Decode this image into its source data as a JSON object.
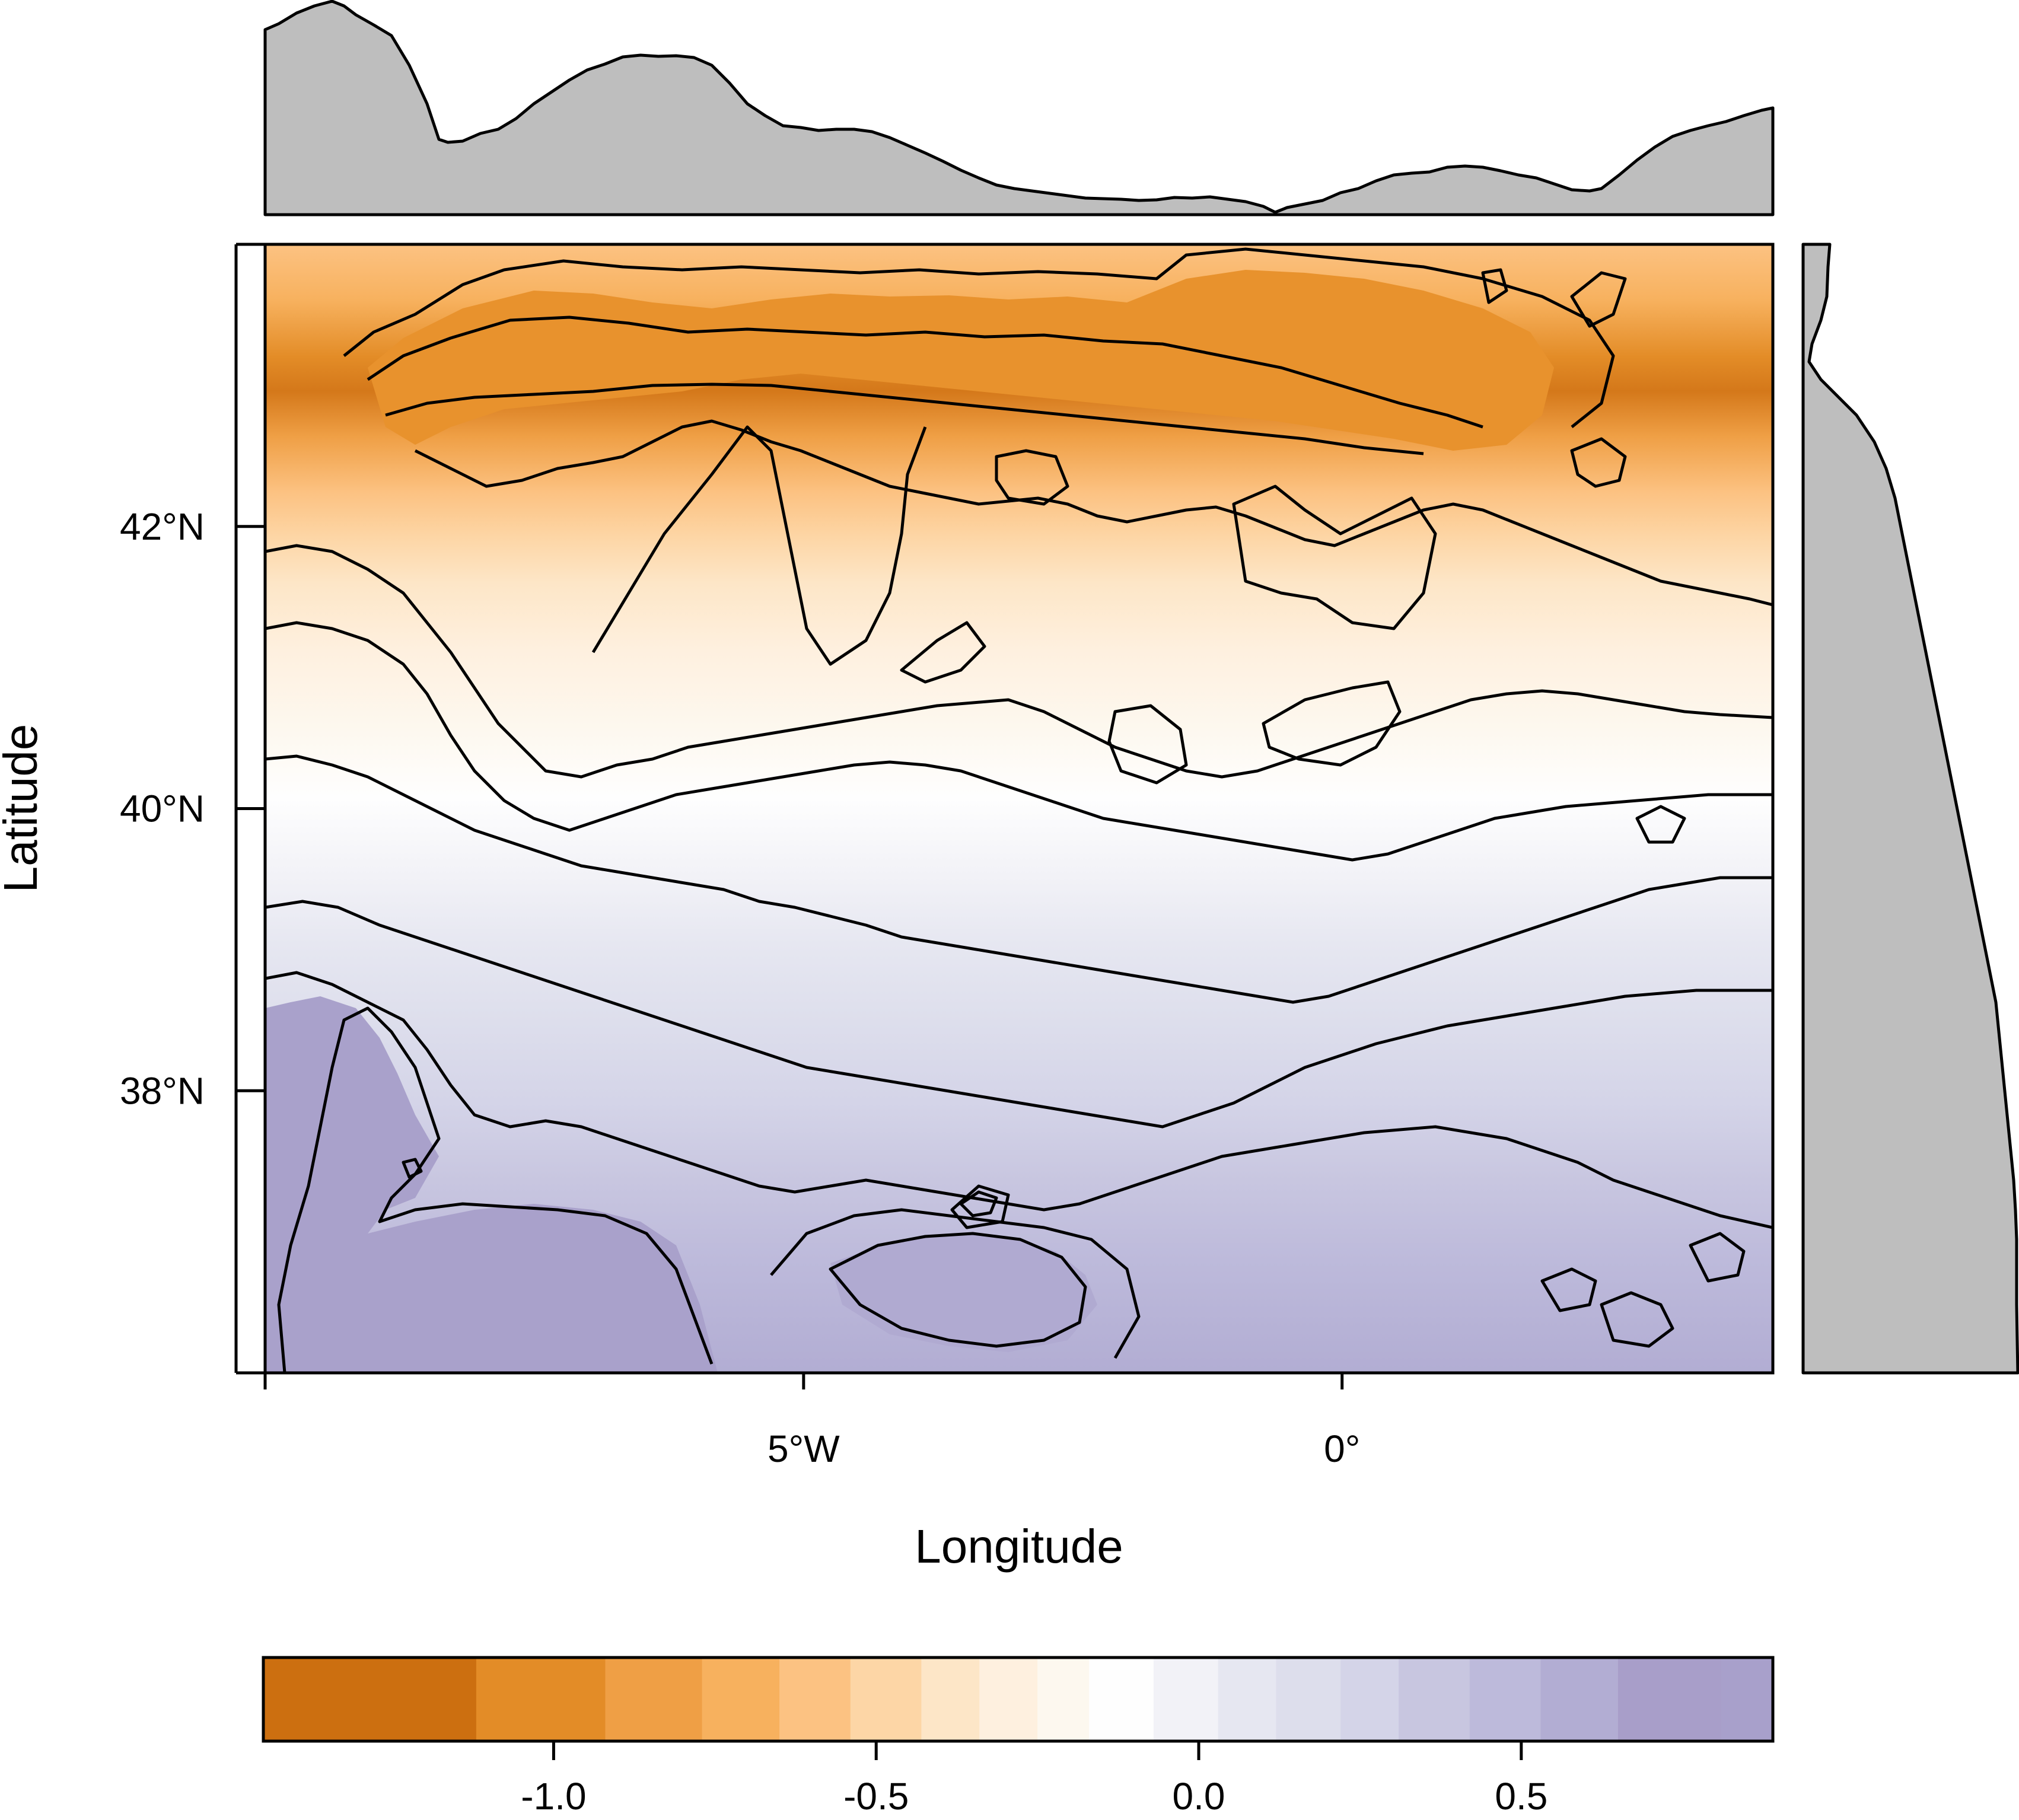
{
  "chart_data": {
    "type": "heatmap",
    "subtype": "filled-contour-map-with-marginal-profiles",
    "xlabel": "Longitude",
    "ylabel": "Latitude",
    "x_ticks": [
      {
        "value": -5,
        "label": "5°W"
      },
      {
        "value": 0,
        "label": "0°"
      }
    ],
    "y_ticks": [
      {
        "value": 38,
        "label": "38°N"
      },
      {
        "value": 40,
        "label": "40°N"
      },
      {
        "value": 42,
        "label": "42°N"
      }
    ],
    "xlim": [
      -10,
      4
    ],
    "ylim": [
      36,
      44
    ],
    "colorbar": {
      "breaks": [
        -1.45,
        -1.12,
        -0.92,
        -0.77,
        -0.65,
        -0.54,
        -0.43,
        -0.34,
        -0.25,
        -0.17,
        -0.07,
        0.03,
        0.12,
        0.22,
        0.31,
        0.42,
        0.53,
        0.65,
        0.81,
        0.89
      ],
      "colors": [
        "#cc6f10",
        "#e38c27",
        "#ef9f45",
        "#f7b15e",
        "#fcc282",
        "#fdd6a6",
        "#fde6c7",
        "#fef0df",
        "#fdf8ef",
        "#fefefe",
        "#f2f2f7",
        "#e6e7f1",
        "#dddeec",
        "#d4d4e8",
        "#c8c6e0",
        "#bdbadb",
        "#b2add3",
        "#a89ec9",
        "#a8a0cb"
      ],
      "ticks": [
        -1.0,
        -0.5,
        0.0,
        0.5
      ],
      "tick_labels": [
        "-1.0",
        "-0.5",
        "0.0",
        "0.5"
      ],
      "orientation": "horizontal",
      "position": "bottom"
    },
    "field_description_regions": [
      {
        "lat_band": [
          43.0,
          43.6
        ],
        "lon_range": [
          -7.5,
          1.5
        ],
        "value": -1.1
      },
      {
        "lat_band": [
          42.3,
          43.0
        ],
        "lon_range": [
          -8.0,
          2.5
        ],
        "value": -0.7
      },
      {
        "lat_band": [
          40.5,
          42.3
        ],
        "lon_range": [
          -9.0,
          3.0
        ],
        "value": -0.25
      },
      {
        "lat_band": [
          39.5,
          40.5
        ],
        "lon_range": [
          -10.0,
          4.0
        ],
        "value": 0.05
      },
      {
        "lat_band": [
          38.0,
          39.5
        ],
        "lon_range": [
          -10.0,
          4.0
        ],
        "value": 0.25
      },
      {
        "lat_band": [
          36.0,
          38.0
        ],
        "lon_range": [
          -10.0,
          4.0
        ],
        "value": 0.5
      }
    ],
    "grid": false,
    "legend": "none"
  }
}
